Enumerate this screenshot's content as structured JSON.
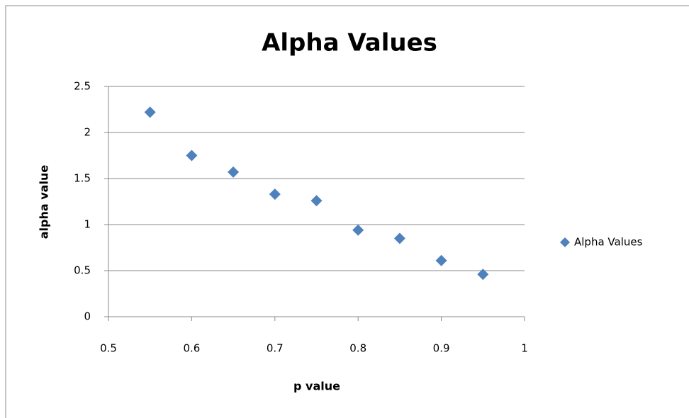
{
  "chart_data": {
    "type": "scatter",
    "title": "Alpha Values",
    "x_label": "p value",
    "y_label": "alpha value",
    "series": [
      {
        "name": "Alpha Values",
        "color": "#4f81bd",
        "x": [
          0.55,
          0.6,
          0.65,
          0.7,
          0.75,
          0.8,
          0.85,
          0.9,
          0.95
        ],
        "values": [
          2.22,
          1.75,
          1.57,
          1.33,
          1.26,
          0.94,
          0.85,
          0.61,
          0.46
        ]
      }
    ],
    "xlim": [
      0.5,
      1
    ],
    "xticks": [
      0.5,
      0.6,
      0.7,
      0.8,
      0.9,
      1
    ],
    "ylim": [
      0,
      2.5
    ],
    "yticks": [
      0,
      0.5,
      1,
      1.5,
      2,
      2.5
    ],
    "grid": true,
    "legend": "right"
  }
}
